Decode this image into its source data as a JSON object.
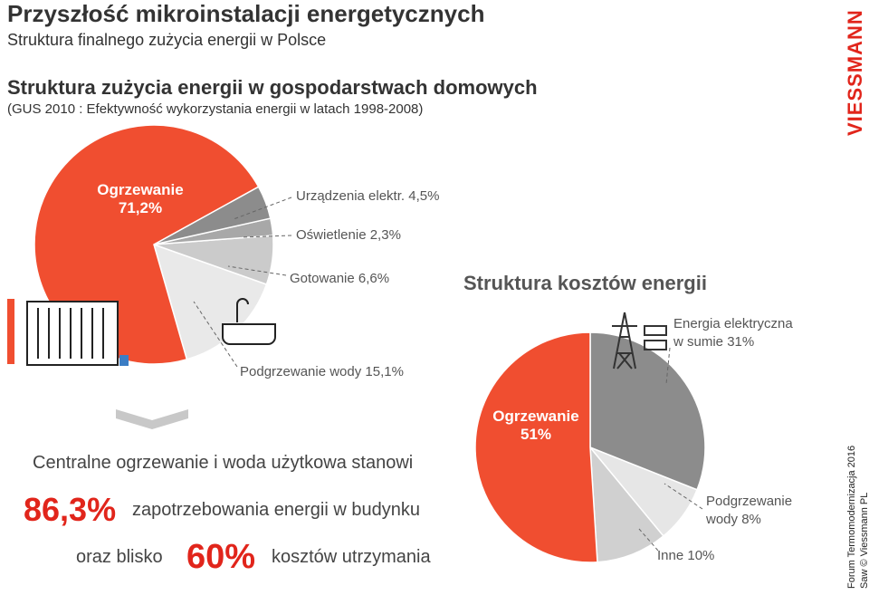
{
  "slide": {
    "title": "Przyszłość mikroinstalacji energetycznych",
    "subtitle": "Struktura finalnego zużycia energii w Polsce",
    "summary": {
      "line1": "Centralne ogrzewanie i woda użytkowa stanowi",
      "share_energy": "86,3%",
      "line2": "zapotrzebowania energii w budynku",
      "line3_prefix": "oraz blisko",
      "share_costs": "60%",
      "line3_suffix": "kosztów utrzymania"
    },
    "logo": "VIESSMANN",
    "footer": {
      "event": "Forum Termomodernizacja 2016",
      "author": "Saw © Viessmann PL"
    }
  },
  "chart_data": [
    {
      "type": "pie",
      "title": "Struktura zużycia energii w gospodarstwach domowych",
      "subtitle": "(GUS 2010 : Efektywność wykorzystania energii w latach 1998-2008)",
      "categories": [
        "Ogrzewanie",
        "Urządzenia elektr.",
        "Oświetlenie",
        "Gotowanie",
        "Podgrzewanie wody"
      ],
      "values": [
        71.2,
        4.5,
        2.3,
        6.6,
        15.1
      ],
      "value_labels": [
        "71,2%",
        "4,5%",
        "2,3%",
        "6,6%",
        "15,1%"
      ],
      "colors": [
        "#f04e30",
        "#8c8c8c",
        "#a8a8a8",
        "#cbcbcb",
        "#e9e9e9"
      ]
    },
    {
      "type": "pie",
      "title": "Struktura kosztów energii",
      "categories": [
        "Ogrzewanie",
        "Energia elektryczna w sumie",
        "Podgrzewanie wody",
        "Inne"
      ],
      "values": [
        51,
        31,
        8,
        10
      ],
      "value_labels": [
        "51%",
        "31%",
        "8%",
        "10%"
      ],
      "colors": [
        "#f04e30",
        "#8c8c8c",
        "#e6e6e6",
        "#d0d0d0"
      ]
    }
  ]
}
